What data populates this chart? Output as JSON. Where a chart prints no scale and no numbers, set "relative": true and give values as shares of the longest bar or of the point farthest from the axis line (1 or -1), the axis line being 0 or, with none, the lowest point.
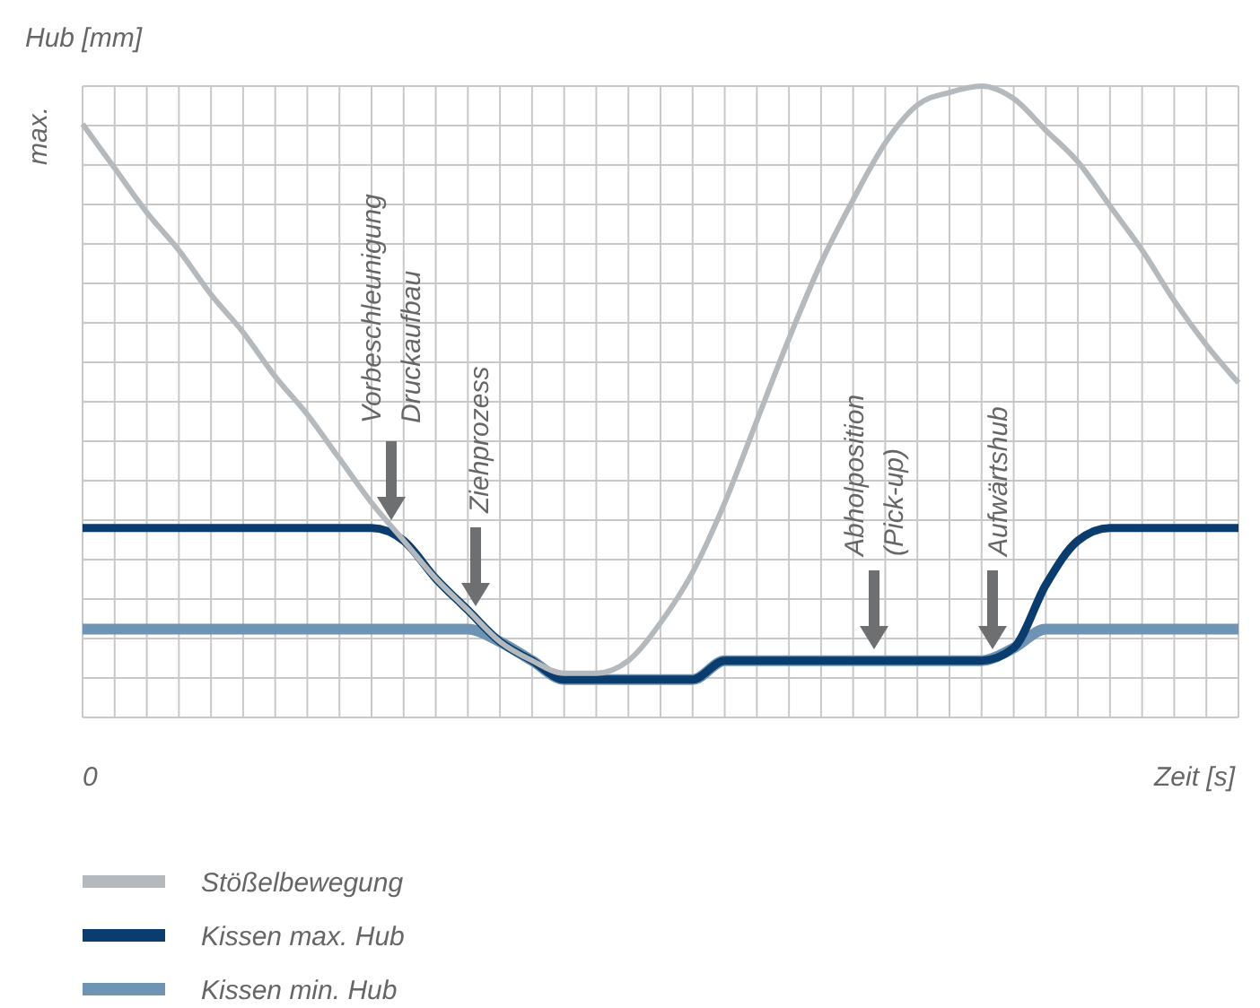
{
  "chart_data": {
    "type": "line",
    "relative": true,
    "ylabel": "Hub [mm]",
    "xlabel": "Zeit [s]",
    "grid": true,
    "legend": "bottom",
    "categories": [
      null,
      null,
      null,
      null,
      null,
      null,
      null,
      null,
      null,
      null,
      null,
      null,
      null,
      null,
      null,
      null,
      null,
      null,
      null,
      null,
      null,
      null,
      null,
      null,
      null,
      null,
      null,
      null,
      null,
      null,
      null,
      null,
      null,
      null,
      null,
      null,
      null
    ],
    "annotations": [
      "max.",
      "0",
      "Vorbeschleunigung\nDruckaufbau",
      "Ziehprozess",
      "Abholposition\n(Pick-up)",
      "Aufwärtshub"
    ],
    "series": [
      {
        "name": "Stößelbewegung",
        "color": "#b4b9bd",
        "values": [
          0.94,
          0.87,
          0.8,
          0.74,
          0.67,
          0.61,
          0.54,
          0.48,
          0.41,
          0.34,
          0.28,
          0.22,
          0.17,
          0.12,
          0.09,
          0.07,
          0.07,
          0.09,
          0.15,
          0.23,
          0.34,
          0.47,
          0.6,
          0.72,
          0.82,
          0.91,
          0.97,
          0.99,
          1.0,
          0.98,
          0.93,
          0.88,
          0.81,
          0.74,
          0.66,
          0.59,
          0.53
        ]
      },
      {
        "name": "Kissen max. Hub",
        "color": "#0a3d6e",
        "values": [
          0.3,
          0.3,
          0.3,
          0.3,
          0.3,
          0.3,
          0.3,
          0.3,
          0.3,
          0.3,
          0.28,
          0.22,
          0.17,
          0.12,
          0.09,
          0.06,
          0.06,
          0.06,
          0.06,
          0.06,
          0.09,
          0.09,
          0.09,
          0.09,
          0.09,
          0.09,
          0.09,
          0.09,
          0.09,
          0.11,
          0.21,
          0.28,
          0.3,
          0.3,
          0.3,
          0.3,
          0.3
        ]
      },
      {
        "name": "Kissen min. Hub",
        "color": "#6f93b3",
        "values": [
          0.14,
          0.14,
          0.14,
          0.14,
          0.14,
          0.14,
          0.14,
          0.14,
          0.14,
          0.14,
          0.14,
          0.14,
          0.14,
          0.12,
          0.09,
          0.06,
          0.06,
          0.06,
          0.06,
          0.06,
          0.09,
          0.09,
          0.09,
          0.09,
          0.09,
          0.09,
          0.09,
          0.09,
          0.09,
          0.11,
          0.14,
          0.14,
          0.14,
          0.14,
          0.14,
          0.14,
          0.14
        ]
      }
    ]
  }
}
